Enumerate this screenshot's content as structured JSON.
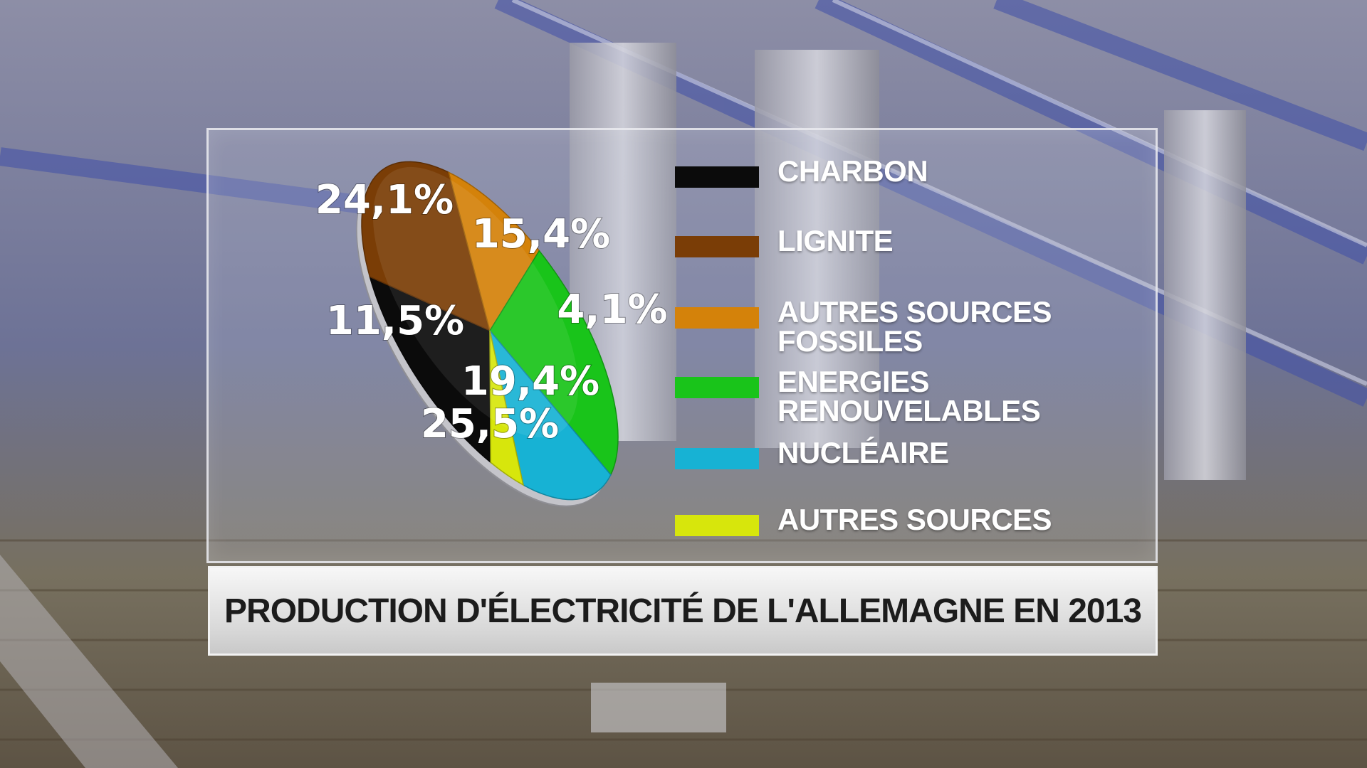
{
  "chart_data": {
    "type": "pie",
    "title": "PRODUCTION D'ÉLECTRICITÉ DE L'ALLEMAGNE EN 2013",
    "categories": [
      "CHARBON",
      "LIGNITE",
      "AUTRES SOURCES\nFOSSILES",
      "ENERGIES\nRENOUVELABLES",
      "NUCLÉAIRE",
      "AUTRES SOURCES"
    ],
    "values": [
      19.4,
      25.5,
      11.5,
      24.1,
      15.4,
      4.1
    ],
    "labels": [
      "19,4%",
      "25,5%",
      "11,5%",
      "24,1%",
      "15,4%",
      "4,1%"
    ],
    "colors": [
      "#0b0b0b",
      "#7a3d06",
      "#d4820a",
      "#19c41a",
      "#17b2d4",
      "#d7e60c"
    ],
    "legend": "right",
    "style": "3d-tilted"
  }
}
